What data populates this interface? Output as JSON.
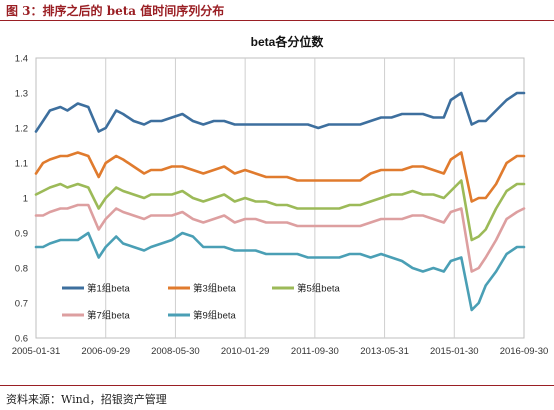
{
  "header": {
    "caption": "图 3：排序之后的 beta 值时间序列分布"
  },
  "footer": {
    "source": "资料来源：Wind，招银资产管理"
  },
  "colors": {
    "accent": "#9a1f24"
  },
  "chart_data": {
    "type": "line",
    "title": "beta各分位数",
    "xlabel": "",
    "ylabel": "",
    "ylim": [
      0.6,
      1.4
    ],
    "yticks": [
      "0.6",
      "0.7",
      "0.8",
      "0.9",
      "1",
      "1.1",
      "1.2",
      "1.3",
      "1.4"
    ],
    "x_tick_labels": [
      "2005-01-31",
      "2006-09-29",
      "2008-05-30",
      "2010-01-29",
      "2011-09-30",
      "2013-05-31",
      "2015-01-30",
      "2016-09-30"
    ],
    "grid": "vertical",
    "legend_position": "bottom-left",
    "x": [
      "2005-01",
      "2005-03",
      "2005-05",
      "2005-08",
      "2005-10",
      "2006-01",
      "2006-04",
      "2006-07",
      "2006-09",
      "2006-12",
      "2007-02",
      "2007-05",
      "2007-08",
      "2007-10",
      "2008-01",
      "2008-04",
      "2008-07",
      "2008-10",
      "2009-01",
      "2009-04",
      "2009-07",
      "2009-10",
      "2010-01",
      "2010-04",
      "2010-07",
      "2010-10",
      "2011-01",
      "2011-04",
      "2011-07",
      "2011-10",
      "2012-01",
      "2012-04",
      "2012-07",
      "2012-10",
      "2013-01",
      "2013-04",
      "2013-07",
      "2013-10",
      "2014-01",
      "2014-04",
      "2014-07",
      "2014-10",
      "2014-12",
      "2015-03",
      "2015-06",
      "2015-08",
      "2015-10",
      "2016-01",
      "2016-04",
      "2016-07",
      "2016-09"
    ],
    "series": [
      {
        "name": "第1组beta",
        "color": "#3d6f9e",
        "values": [
          1.19,
          1.22,
          1.25,
          1.26,
          1.25,
          1.27,
          1.26,
          1.19,
          1.2,
          1.25,
          1.24,
          1.22,
          1.21,
          1.22,
          1.22,
          1.23,
          1.24,
          1.22,
          1.21,
          1.22,
          1.22,
          1.21,
          1.21,
          1.21,
          1.21,
          1.21,
          1.21,
          1.21,
          1.21,
          1.2,
          1.21,
          1.21,
          1.21,
          1.21,
          1.22,
          1.23,
          1.23,
          1.24,
          1.24,
          1.24,
          1.23,
          1.23,
          1.28,
          1.3,
          1.21,
          1.22,
          1.22,
          1.25,
          1.28,
          1.3,
          1.3
        ]
      },
      {
        "name": "第3组beta",
        "color": "#e07b2e",
        "values": [
          1.07,
          1.1,
          1.11,
          1.12,
          1.12,
          1.13,
          1.12,
          1.06,
          1.1,
          1.12,
          1.11,
          1.09,
          1.07,
          1.08,
          1.08,
          1.09,
          1.09,
          1.08,
          1.07,
          1.08,
          1.09,
          1.07,
          1.08,
          1.07,
          1.06,
          1.06,
          1.06,
          1.05,
          1.05,
          1.05,
          1.05,
          1.05,
          1.05,
          1.05,
          1.07,
          1.08,
          1.08,
          1.08,
          1.09,
          1.09,
          1.08,
          1.07,
          1.11,
          1.13,
          0.99,
          1.0,
          1.0,
          1.04,
          1.1,
          1.12,
          1.12
        ]
      },
      {
        "name": "第5组beta",
        "color": "#9cba58",
        "values": [
          1.01,
          1.02,
          1.03,
          1.04,
          1.03,
          1.04,
          1.03,
          0.97,
          1.0,
          1.03,
          1.02,
          1.01,
          1.0,
          1.01,
          1.01,
          1.01,
          1.02,
          1.0,
          0.99,
          1.0,
          1.01,
          0.99,
          1.0,
          0.99,
          0.99,
          0.98,
          0.98,
          0.97,
          0.97,
          0.97,
          0.97,
          0.97,
          0.98,
          0.98,
          0.99,
          1.0,
          1.01,
          1.01,
          1.02,
          1.01,
          1.01,
          1.0,
          1.02,
          1.05,
          0.88,
          0.89,
          0.91,
          0.97,
          1.02,
          1.04,
          1.04
        ]
      },
      {
        "name": "第7组beta",
        "color": "#dd9fa0",
        "values": [
          0.95,
          0.95,
          0.96,
          0.97,
          0.97,
          0.98,
          0.98,
          0.91,
          0.94,
          0.97,
          0.96,
          0.95,
          0.94,
          0.95,
          0.95,
          0.95,
          0.96,
          0.94,
          0.93,
          0.94,
          0.95,
          0.93,
          0.94,
          0.94,
          0.93,
          0.93,
          0.93,
          0.92,
          0.92,
          0.92,
          0.92,
          0.92,
          0.92,
          0.92,
          0.93,
          0.94,
          0.94,
          0.94,
          0.95,
          0.95,
          0.94,
          0.93,
          0.96,
          0.97,
          0.79,
          0.8,
          0.83,
          0.88,
          0.94,
          0.96,
          0.97
        ]
      },
      {
        "name": "第9组beta",
        "color": "#4a9fb5",
        "values": [
          0.86,
          0.86,
          0.87,
          0.88,
          0.88,
          0.88,
          0.9,
          0.83,
          0.86,
          0.89,
          0.87,
          0.86,
          0.85,
          0.86,
          0.87,
          0.88,
          0.9,
          0.89,
          0.86,
          0.86,
          0.86,
          0.85,
          0.85,
          0.85,
          0.84,
          0.84,
          0.84,
          0.84,
          0.83,
          0.83,
          0.83,
          0.83,
          0.84,
          0.84,
          0.83,
          0.84,
          0.83,
          0.82,
          0.8,
          0.79,
          0.8,
          0.79,
          0.82,
          0.83,
          0.68,
          0.7,
          0.75,
          0.79,
          0.84,
          0.86,
          0.86
        ]
      }
    ]
  }
}
